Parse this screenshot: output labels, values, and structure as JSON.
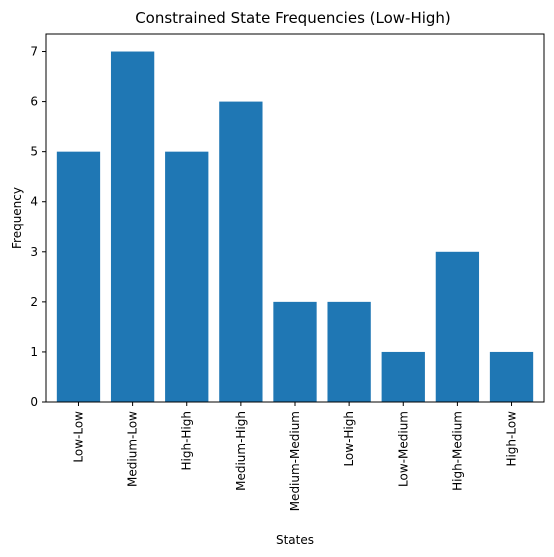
{
  "chart_data": {
    "type": "bar",
    "title": "Constrained State Frequencies (Low-High)",
    "xlabel": "States",
    "ylabel": "Frequency",
    "categories": [
      "Low-Low",
      "Medium-Low",
      "High-High",
      "Medium-High",
      "Medium-Medium",
      "Low-High",
      "Low-Medium",
      "High-Medium",
      "High-Low"
    ],
    "values": [
      5,
      7,
      5,
      6,
      2,
      2,
      1,
      3,
      1
    ],
    "ylim": [
      0,
      7.35
    ],
    "yticks": [
      0,
      1,
      2,
      3,
      4,
      5,
      6,
      7
    ],
    "bar_color": "#1f77b4",
    "grid": false,
    "x_tick_rotation": "vertical"
  }
}
